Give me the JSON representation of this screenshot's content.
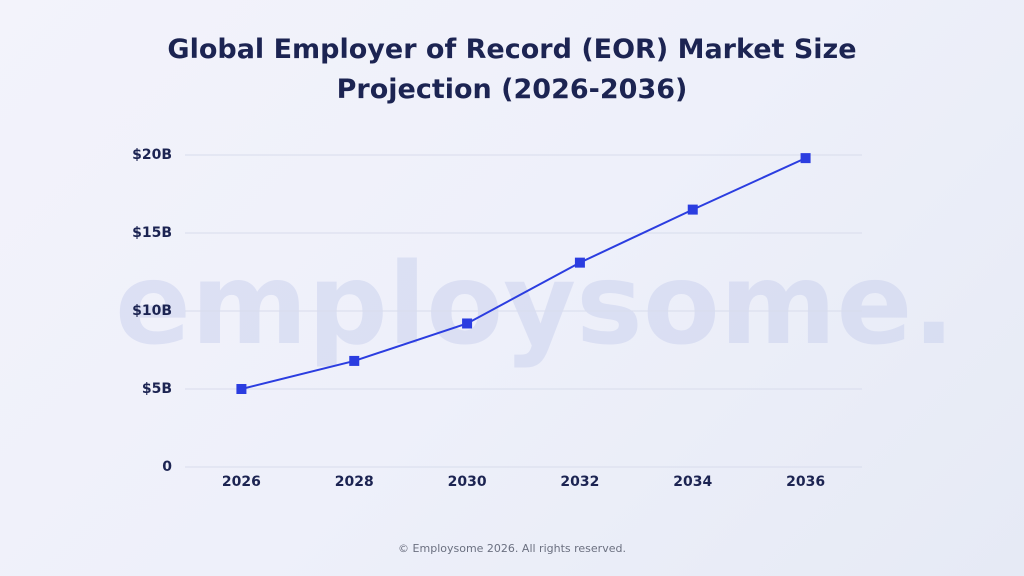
{
  "chart_data": {
    "type": "line",
    "title": "Global Employer of Record (EOR) Market Size Projection (2026-2036)",
    "watermark": "employsome.",
    "footer": "© Employsome 2026. All rights reserved.",
    "categories": [
      "2026",
      "2028",
      "2030",
      "2032",
      "2034",
      "2036"
    ],
    "series": [
      {
        "name": "Market Size",
        "color": "#2b3de0",
        "values": [
          5,
          6.8,
          9.2,
          13.1,
          16.5,
          19.8
        ]
      }
    ],
    "ylim": [
      0,
      20
    ],
    "yticks": [
      0,
      {
        "value": 5,
        "label": "$5B"
      },
      {
        "value": 10,
        "label": "$10B"
      },
      {
        "value": 15,
        "label": "$15B"
      },
      {
        "value": 20,
        "label": "$20B"
      }
    ],
    "grid": true
  }
}
